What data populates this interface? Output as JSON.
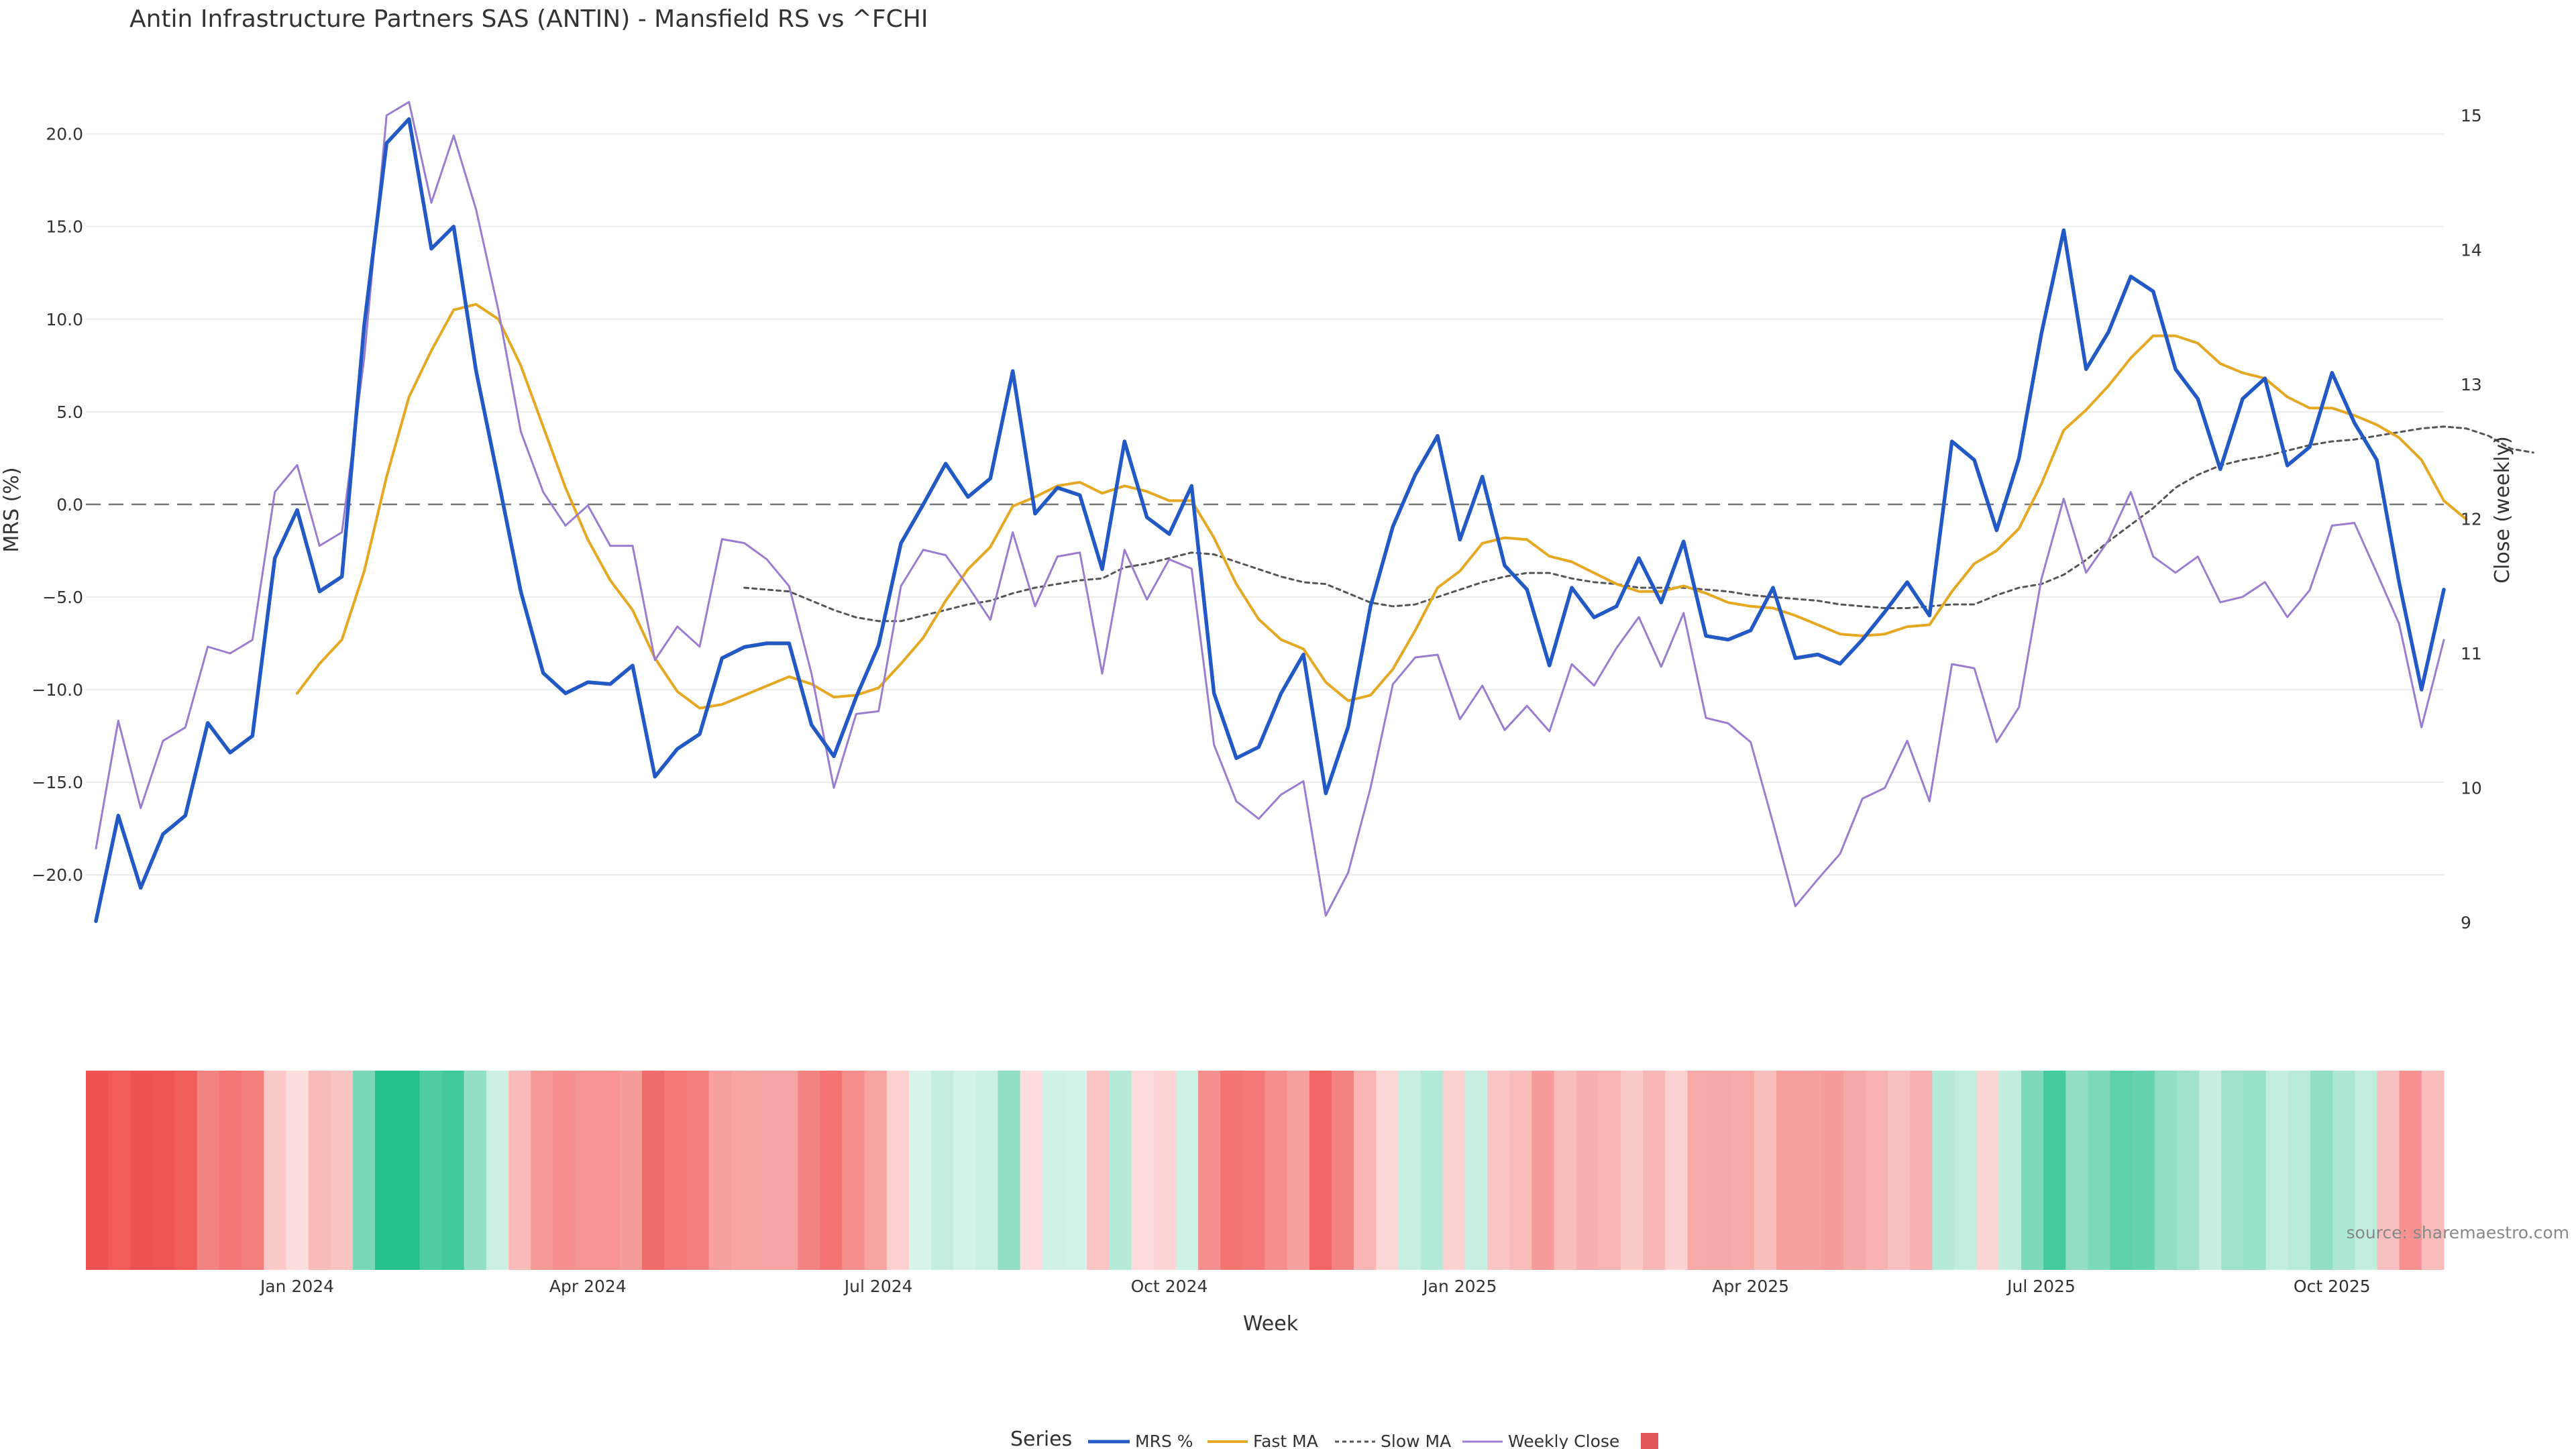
{
  "chart_data": {
    "type": "line",
    "title": "Antin Infrastructure Partners SAS (ANTIN) - Mansfield RS vs ^FCHI",
    "xlabel": "Week",
    "ylabel_left": "MRS (%)",
    "ylabel_right": "Close (weekly)",
    "source": "source: sharemaestro.com",
    "legend": {
      "title": "Series",
      "placement": "bottom-center",
      "entries": [
        "MRS %",
        "Fast MA",
        "Slow MA",
        "Weekly Close",
        ""
      ]
    },
    "colors": {
      "mrs": "#2359c4",
      "fast": "#e5a823",
      "slow": "#555555",
      "close": "#9b7dd0",
      "zero": "#777777",
      "legend_square": "#e05555"
    },
    "x_ticks": [
      "Jan 2024",
      "Apr 2024",
      "Jul 2024",
      "Oct 2024",
      "Jan 2025",
      "Apr 2025",
      "Jul 2025",
      "Oct 2025"
    ],
    "x_tick_weeks": [
      9,
      22,
      35,
      48,
      61,
      74,
      87,
      100
    ],
    "yleft_ticks": [
      "20.0",
      "15.0",
      "10.0",
      "5.0",
      "0.0",
      "−5.0",
      "−10.0",
      "−15.0",
      "−20.0"
    ],
    "yleft_tick_values": [
      20,
      15,
      10,
      5,
      0,
      -5,
      -10,
      -15,
      -20
    ],
    "yleft_range": [
      -23,
      21
    ],
    "yright_ticks": [
      "15",
      "14",
      "13",
      "12",
      "11",
      "10",
      "9"
    ],
    "yright_tick_values": [
      15,
      14,
      13,
      12,
      11,
      10,
      9
    ],
    "yright_range": [
      9,
      15
    ],
    "grid": true,
    "series": [
      {
        "name": "MRS %",
        "axis": "left",
        "values": [
          -22.5,
          -16.8,
          -20.7,
          -17.8,
          -16.8,
          -11.8,
          -13.4,
          -12.5,
          -2.9,
          -0.3,
          -4.7,
          -3.9,
          9.7,
          19.5,
          20.8,
          13.8,
          15.0,
          7.2,
          1.3,
          -4.7,
          -9.1,
          -10.2,
          -9.6,
          -9.7,
          -8.7,
          -14.7,
          -13.2,
          -12.4,
          -8.3,
          -7.7,
          -7.5,
          -7.5,
          -11.9,
          -13.6,
          -10.4,
          -7.6,
          -2.1,
          0.0,
          2.2,
          0.4,
          1.4,
          7.2,
          -0.5,
          0.9,
          0.5,
          -3.5,
          3.4,
          -0.7,
          -1.6,
          1.0,
          -10.2,
          -13.7,
          -13.1,
          -10.2,
          -8.1,
          -15.6,
          -12.0,
          -5.5,
          -1.2,
          1.6,
          3.7,
          -1.9,
          1.5,
          -3.3,
          -4.6,
          -8.7,
          -4.5,
          -6.1,
          -5.5,
          -2.9,
          -5.3,
          -2.0,
          -7.1,
          -7.3,
          -6.8,
          -4.5,
          -8.3,
          -8.1,
          -8.6,
          -7.3,
          -5.8,
          -4.2,
          -6.0,
          3.4,
          2.4,
          -1.4,
          2.5,
          9.2,
          14.8,
          7.3,
          9.3,
          12.3,
          11.5,
          7.3,
          5.7,
          1.9,
          5.7,
          6.8,
          2.1,
          3.1,
          7.1,
          4.4,
          2.4,
          -4.2,
          -10.0,
          -4.6
        ]
      },
      {
        "name": "Fast MA",
        "axis": "left",
        "start_week": 9,
        "values": [
          -10.2,
          -8.6,
          -7.3,
          -3.6,
          1.5,
          5.8,
          8.3,
          10.5,
          10.8,
          10.0,
          7.5,
          4.2,
          0.9,
          -1.9,
          -4.1,
          -5.7,
          -8.3,
          -10.1,
          -11.0,
          -10.8,
          -10.3,
          -9.8,
          -9.3,
          -9.7,
          -10.4,
          -10.3,
          -9.9,
          -8.6,
          -7.2,
          -5.2,
          -3.5,
          -2.3,
          -0.1,
          0.4,
          1.0,
          1.2,
          0.6,
          1.0,
          0.7,
          0.2,
          0.2,
          -1.8,
          -4.3,
          -6.2,
          -7.3,
          -7.8,
          -9.6,
          -10.6,
          -10.3,
          -8.9,
          -6.8,
          -4.5,
          -3.6,
          -2.1,
          -1.8,
          -1.9,
          -2.8,
          -3.1,
          -3.7,
          -4.3,
          -4.7,
          -4.7,
          -4.4,
          -4.8,
          -5.3,
          -5.5,
          -5.6,
          -6.0,
          -6.5,
          -7.0,
          -7.1,
          -7.0,
          -6.6,
          -6.5,
          -4.7,
          -3.2,
          -2.5,
          -1.3,
          1.1,
          4.0,
          5.1,
          6.4,
          7.9,
          9.1,
          9.1,
          8.7,
          7.6,
          7.1,
          6.8,
          5.8,
          5.2,
          5.2,
          4.8,
          4.3,
          3.6,
          2.4,
          0.2,
          -0.8
        ]
      },
      {
        "name": "Slow MA",
        "axis": "left",
        "start_week": 29,
        "values": [
          -4.5,
          -4.6,
          -4.7,
          -5.2,
          -5.7,
          -6.1,
          -6.3,
          -6.3,
          -6.0,
          -5.7,
          -5.4,
          -5.2,
          -4.8,
          -4.5,
          -4.3,
          -4.1,
          -4.0,
          -3.4,
          -3.2,
          -2.9,
          -2.6,
          -2.7,
          -3.1,
          -3.5,
          -3.9,
          -4.2,
          -4.3,
          -4.8,
          -5.3,
          -5.5,
          -5.4,
          -5.0,
          -4.6,
          -4.2,
          -3.9,
          -3.7,
          -3.7,
          -4.0,
          -4.2,
          -4.3,
          -4.5,
          -4.5,
          -4.5,
          -4.6,
          -4.7,
          -4.9,
          -5.0,
          -5.1,
          -5.2,
          -5.4,
          -5.5,
          -5.6,
          -5.6,
          -5.5,
          -5.4,
          -5.4,
          -4.9,
          -4.5,
          -4.3,
          -3.8,
          -3.0,
          -2.0,
          -1.1,
          -0.2,
          0.9,
          1.6,
          2.1,
          2.4,
          2.6,
          2.9,
          3.2,
          3.4,
          3.5,
          3.7,
          3.9,
          4.1,
          4.2,
          4.1,
          3.7,
          3.0,
          2.8
        ]
      },
      {
        "name": "Weekly Close",
        "axis": "right",
        "values": [
          9.55,
          10.5,
          9.85,
          10.35,
          10.45,
          11.05,
          11.0,
          11.1,
          12.2,
          12.4,
          11.8,
          11.9,
          13.2,
          15.0,
          15.1,
          14.35,
          14.85,
          14.3,
          13.55,
          12.65,
          12.2,
          11.95,
          12.1,
          11.8,
          11.8,
          10.95,
          11.2,
          11.05,
          11.85,
          11.82,
          11.7,
          11.5,
          10.85,
          10.0,
          10.55,
          10.57,
          11.5,
          11.77,
          11.73,
          11.5,
          11.25,
          11.9,
          11.35,
          11.72,
          11.75,
          10.85,
          11.77,
          11.4,
          11.7,
          11.63,
          10.32,
          9.9,
          9.77,
          9.95,
          10.05,
          9.05,
          9.37,
          10.0,
          10.77,
          10.97,
          10.99,
          10.51,
          10.76,
          10.43,
          10.61,
          10.42,
          10.92,
          10.76,
          11.04,
          11.27,
          10.9,
          11.3,
          10.52,
          10.48,
          10.34,
          9.74,
          9.12,
          9.32,
          9.51,
          9.92,
          10.0,
          10.35,
          9.9,
          10.92,
          10.89,
          10.34,
          10.6,
          11.55,
          12.15,
          11.6,
          11.84,
          12.2,
          11.72,
          11.6,
          11.72,
          11.38,
          11.42,
          11.53,
          11.27,
          11.47,
          11.95,
          11.97,
          11.6,
          11.22,
          10.45,
          11.1
        ]
      }
    ],
    "heatmap": {
      "name": "MRS heat band",
      "values": [
        -22.5,
        -16.8,
        -20.7,
        -17.8,
        -16.8,
        -11.8,
        -13.4,
        -12.5,
        -2.9,
        -0.3,
        -4.7,
        -3.9,
        9.7,
        19.5,
        20.8,
        13.8,
        15.0,
        7.2,
        1.3,
        -4.7,
        -9.1,
        -10.2,
        -9.6,
        -9.7,
        -8.7,
        -14.7,
        -13.2,
        -12.4,
        -8.3,
        -7.7,
        -7.5,
        -7.5,
        -11.9,
        -13.6,
        -10.4,
        -7.6,
        -2.1,
        0.0,
        2.2,
        0.4,
        1.4,
        7.2,
        -0.5,
        0.9,
        0.5,
        -3.5,
        3.4,
        -0.7,
        -1.6,
        1.0,
        -10.2,
        -13.7,
        -13.1,
        -10.2,
        -8.1,
        -15.6,
        -12.0,
        -5.5,
        -1.2,
        1.6,
        3.7,
        -1.9,
        1.5,
        -3.3,
        -4.6,
        -8.7,
        -4.5,
        -6.1,
        -5.5,
        -2.9,
        -5.3,
        -2.0,
        -7.1,
        -7.3,
        -6.8,
        -4.5,
        -8.3,
        -8.1,
        -8.6,
        -7.3,
        -5.8,
        -4.2,
        -6.0,
        3.4,
        2.4,
        -1.4,
        2.5,
        9.2,
        14.8,
        7.3,
        9.3,
        12.3,
        11.5,
        7.3,
        5.7,
        1.9,
        5.7,
        6.8,
        2.1,
        3.1,
        7.1,
        4.4,
        2.4,
        -4.2,
        -10.0,
        -4.6
      ],
      "neg_color": "#ef5350",
      "pos_color": "#26c08c"
    }
  }
}
